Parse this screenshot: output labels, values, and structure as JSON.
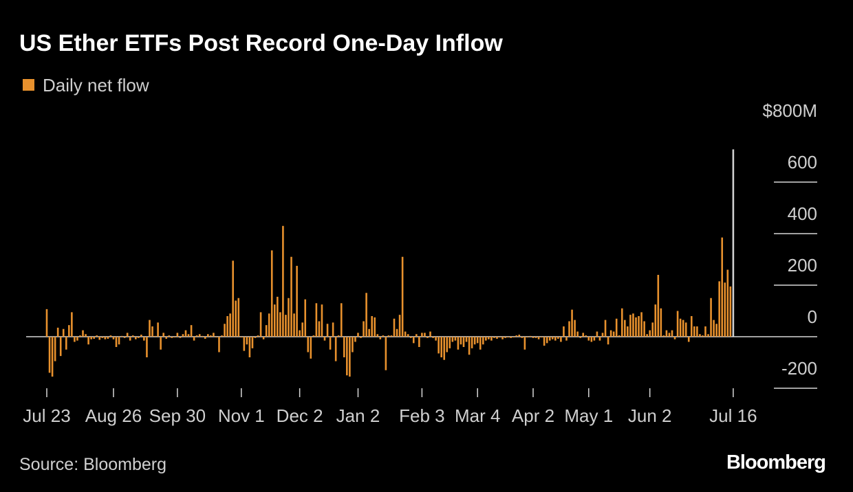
{
  "chart_data": {
    "type": "bar",
    "title": "US Ether ETFs Post Record One-Day Inflow",
    "series": [
      {
        "name": "Daily net flow",
        "color": "#e8912d",
        "values": [
          107,
          -140,
          -155,
          -95,
          35,
          -75,
          30,
          -50,
          45,
          95,
          -20,
          -15,
          5,
          25,
          10,
          -30,
          -10,
          -8,
          5,
          -12,
          -5,
          -10,
          -8,
          5,
          -10,
          -40,
          -30,
          3,
          -5,
          15,
          -15,
          5,
          -10,
          -5,
          8,
          -15,
          -80,
          65,
          40,
          3,
          55,
          -50,
          15,
          -8,
          5,
          -5,
          -3,
          15,
          -5,
          10,
          25,
          10,
          45,
          -15,
          5,
          10,
          3,
          -8,
          10,
          5,
          15,
          -3,
          -60,
          5,
          50,
          80,
          90,
          295,
          140,
          150,
          -3,
          -55,
          -30,
          -80,
          -45,
          -5,
          5,
          95,
          -10,
          45,
          90,
          335,
          125,
          155,
          95,
          430,
          85,
          150,
          310,
          90,
          275,
          25,
          55,
          145,
          -60,
          -85,
          5,
          130,
          60,
          125,
          -15,
          50,
          -50,
          55,
          -95,
          5,
          130,
          -80,
          -150,
          -155,
          -60,
          -20,
          15,
          -5,
          60,
          170,
          30,
          80,
          75,
          10,
          -10,
          5,
          -130,
          5,
          5,
          70,
          30,
          85,
          310,
          20,
          10,
          -5,
          -25,
          10,
          -40,
          15,
          15,
          -5,
          20,
          -5,
          -15,
          -65,
          -80,
          -90,
          -60,
          -45,
          -20,
          -15,
          -50,
          -30,
          -40,
          -20,
          -70,
          -45,
          -30,
          -25,
          -50,
          -30,
          -15,
          -10,
          -15,
          -5,
          -8,
          -3,
          -10,
          -5,
          -3,
          -5,
          -3,
          5,
          8,
          -5,
          -50,
          -3,
          3,
          -5,
          -5,
          -10,
          -3,
          -35,
          -25,
          -15,
          -10,
          -15,
          -8,
          -20,
          40,
          -15,
          60,
          105,
          65,
          20,
          -5,
          15,
          5,
          -15,
          -20,
          -15,
          20,
          -15,
          15,
          65,
          -30,
          25,
          20,
          70,
          5,
          110,
          65,
          40,
          85,
          90,
          75,
          80,
          95,
          60,
          10,
          25,
          55,
          125,
          240,
          110,
          5,
          25,
          15,
          25,
          -10,
          100,
          70,
          65,
          55,
          -20,
          80,
          40,
          40,
          10,
          5,
          40,
          10,
          150,
          65,
          50,
          215,
          385,
          210,
          260,
          195,
          727
        ]
      }
    ],
    "highlight": {
      "index": 247,
      "color": "#d0d0d0"
    },
    "categories": [
      "Jul 23",
      null,
      null,
      null,
      null,
      null,
      null,
      null,
      null,
      null,
      null,
      null,
      null,
      null,
      null,
      null,
      null,
      null,
      null,
      null,
      null,
      null,
      null,
      null,
      "Aug 26",
      null,
      null,
      null,
      null,
      null,
      null,
      null,
      null,
      null,
      null,
      null,
      null,
      null,
      null,
      null,
      null,
      null,
      null,
      null,
      null,
      null,
      null,
      "Sep 30",
      null,
      null,
      null,
      null,
      null,
      null,
      null,
      null,
      null,
      null,
      null,
      null,
      null,
      null,
      null,
      null,
      null,
      null,
      null,
      null,
      null,
      null,
      "Nov 1",
      null,
      null,
      null,
      null,
      null,
      null,
      null,
      null,
      null,
      null,
      null,
      null,
      null,
      null,
      null,
      null,
      null,
      null,
      null,
      null,
      "Dec 2",
      null,
      null,
      null,
      null,
      null,
      null,
      null,
      null,
      null,
      null,
      null,
      null,
      null,
      null,
      null,
      null,
      null,
      null,
      null,
      null,
      "Jan 2",
      null,
      null,
      null,
      null,
      null,
      null,
      null,
      null,
      null,
      null,
      null,
      null,
      null,
      null,
      null,
      null,
      null,
      null,
      null,
      null,
      null,
      null,
      "Feb 3",
      null,
      null,
      null,
      null,
      null,
      null,
      null,
      null,
      null,
      null,
      null,
      null,
      null,
      null,
      null,
      null,
      null,
      null,
      null,
      "Mar 4",
      null,
      null,
      null,
      null,
      null,
      null,
      null,
      null,
      null,
      null,
      null,
      null,
      null,
      null,
      null,
      null,
      null,
      null,
      null,
      "Apr 2",
      null,
      null,
      null,
      null,
      null,
      null,
      null,
      null,
      null,
      null,
      null,
      null,
      null,
      null,
      null,
      null,
      null,
      null,
      null,
      "May 1",
      null,
      null,
      null,
      null,
      null,
      null,
      null,
      null,
      null,
      null,
      null,
      null,
      null,
      null,
      null,
      null,
      null,
      null,
      null,
      null,
      null,
      "Jun 2",
      null,
      null,
      null,
      null,
      null,
      null,
      null,
      null,
      null,
      null,
      null,
      null,
      null,
      null,
      null,
      null,
      null,
      null,
      null,
      null,
      null,
      null,
      null,
      null,
      null,
      null,
      null,
      null,
      null,
      "Jul 16"
    ],
    "ylim": [
      -200,
      800
    ],
    "yticks": [
      -200,
      0,
      200,
      400,
      600,
      {
        "value": 800,
        "label": "$800M"
      }
    ],
    "source": "Source: Bloomberg",
    "brand": "Bloomberg"
  }
}
